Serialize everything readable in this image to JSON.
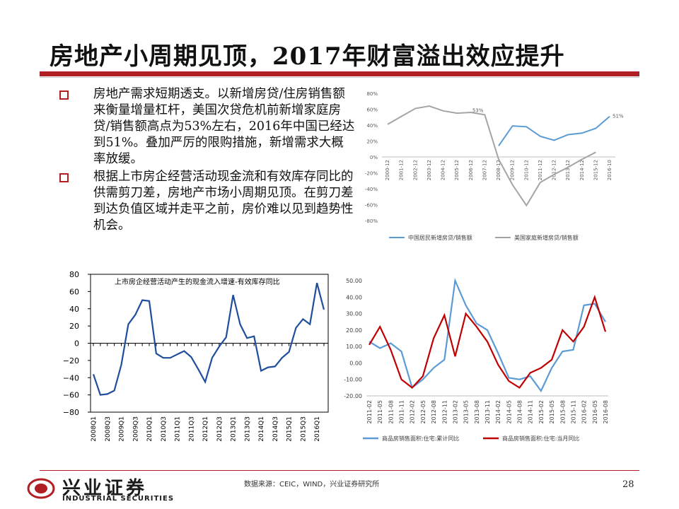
{
  "title": "房地产小周期见顶，2017年财富溢出效应提升",
  "bullets": [
    "房地产需求短期透支。以新增房贷/住房销售额来衡量增量杠杆，美国次贷危机前新增家庭房贷/销售额高点为53%左右，2016年中国已经达到51%。叠加严厉的限购措施，新增需求大概率放缓。",
    "根据上市房企经营活动现金流和有效库存同比的供需剪刀差，房地产市场小周期见顶。在剪刀差到达负值区域并走平之前，房价难以见到趋势性机会。"
  ],
  "source": "数据来源：CEIC，WIND，兴业证券研究所",
  "page_number": "28",
  "logo": {
    "name_cn": "兴业证券",
    "name_en": "INDUSTRIAL SECURITIES"
  },
  "colors": {
    "accent": "#b01f24",
    "blue": "#5b9bd5",
    "gray": "#a5a5a5",
    "darkred": "#c00000",
    "navy": "#1f4e9c"
  },
  "chart_data": [
    {
      "type": "line",
      "x": [
        "2000-12",
        "2001-12",
        "2002-12",
        "2003-12",
        "2004-12",
        "2005-12",
        "2006-12",
        "2007-12",
        "2008-12",
        "2009-12",
        "2010-12",
        "2011-12",
        "2012-12",
        "2013-12",
        "2014-12",
        "2015-12",
        "2016-10"
      ],
      "ylim": [
        -80,
        80
      ],
      "yticks": [
        "80%",
        "60%",
        "40%",
        "20%",
        "0%",
        "-20%",
        "-40%",
        "-60%",
        "-80%"
      ],
      "series": [
        {
          "name": "中国居民新增房贷/销售额",
          "values": [
            null,
            null,
            null,
            null,
            null,
            null,
            null,
            null,
            14,
            39,
            38,
            26,
            21,
            28,
            30,
            36,
            51
          ]
        },
        {
          "name": "美国家庭新增房贷/销售额",
          "values": [
            41,
            51,
            61,
            64,
            58,
            55,
            56,
            53,
            -3,
            -35,
            -61,
            -32,
            -22,
            -13,
            -3,
            6,
            null
          ]
        }
      ],
      "annotations": [
        "53%",
        "51%"
      ]
    },
    {
      "type": "line",
      "title": "上市房企经营活动产生的现金流入增速-有效库存同比",
      "x": [
        "2008Q1",
        "2008Q2",
        "2008Q3",
        "2008Q4",
        "2009Q1",
        "2009Q2",
        "2009Q3",
        "2009Q4",
        "2010Q1",
        "2010Q2",
        "2010Q3",
        "2010Q4",
        "2011Q1",
        "2011Q2",
        "2011Q3",
        "2011Q4",
        "2012Q1",
        "2012Q2",
        "2012Q3",
        "2012Q4",
        "2013Q1",
        "2013Q2",
        "2013Q3",
        "2013Q4",
        "2014Q1",
        "2014Q2",
        "2014Q3",
        "2014Q4",
        "2015Q1",
        "2015Q2",
        "2015Q3",
        "2015Q4",
        "2016Q1",
        "2016Q2"
      ],
      "xticks": [
        "2008Q1",
        "2008Q3",
        "2009Q1",
        "2009Q3",
        "2010Q1",
        "2010Q3",
        "2011Q1",
        "2011Q3",
        "2012Q1",
        "2012Q3",
        "2013Q1",
        "2013Q3",
        "2014Q1",
        "2014Q3",
        "2015Q1",
        "2015Q3",
        "2016Q1"
      ],
      "ylim": [
        -80,
        80
      ],
      "yticks": [
        "80",
        "60",
        "40",
        "20",
        "0",
        "−20",
        "−40",
        "−60",
        "−80"
      ],
      "series": [
        {
          "name": "",
          "values": [
            -36,
            -60,
            -59,
            -55,
            -25,
            22,
            33,
            50,
            49,
            -12,
            -17,
            -17,
            -13,
            -9,
            -16,
            -30,
            -45,
            -17,
            -4,
            7,
            56,
            22,
            6,
            8,
            -32,
            -28,
            -27,
            -17,
            -10,
            18,
            28,
            22,
            70,
            39
          ]
        }
      ]
    },
    {
      "type": "line",
      "x": [
        "2011-02",
        "2011-05",
        "2011-08",
        "2011-11",
        "2012-02",
        "2012-05",
        "2012-08",
        "2012-11",
        "2013-02",
        "2013-05",
        "2013-08",
        "2013-11",
        "2014-02",
        "2014-05",
        "2014-08",
        "2014-11",
        "2015-02",
        "2015-05",
        "2015-08",
        "2015-11",
        "2016-02",
        "2016-05",
        "2016-08"
      ],
      "ylim": [
        -20,
        50
      ],
      "yticks": [
        "50.00",
        "40.00",
        "30.00",
        "20.00",
        "10.00",
        "0.00",
        "-10.00",
        "-20.00"
      ],
      "series": [
        {
          "name": "商品房销售面积:住宅:累计同比",
          "values": [
            13,
            9,
            12,
            7,
            -15,
            -10,
            -3,
            2,
            50,
            35,
            24,
            20,
            6,
            -9,
            -10,
            -8,
            -17,
            -3,
            7,
            8,
            35,
            36,
            25
          ]
        },
        {
          "name": "商品房销售面积:住宅:当月同比",
          "values": [
            11,
            22,
            8,
            -10,
            -15,
            -8,
            15,
            29,
            4,
            30,
            22,
            13,
            -1,
            -11,
            -15,
            -6,
            -3,
            2,
            20,
            13,
            22,
            40,
            19
          ]
        }
      ]
    }
  ]
}
